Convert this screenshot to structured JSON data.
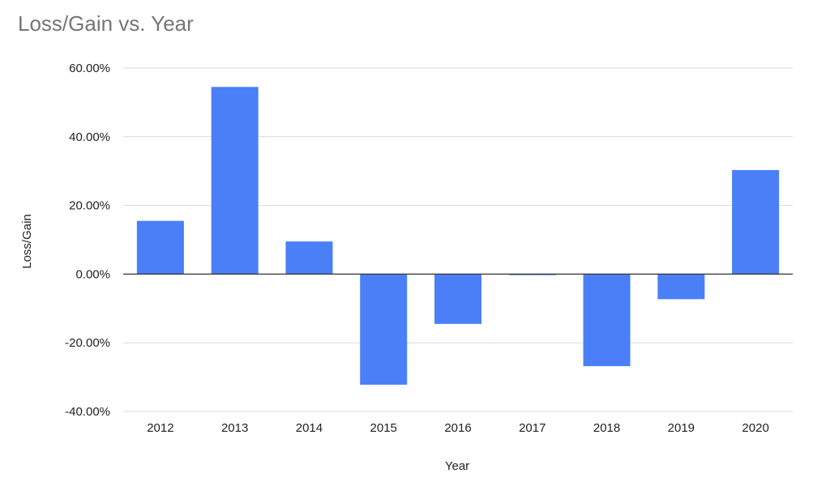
{
  "chart_data": {
    "type": "bar",
    "title": "Loss/Gain vs. Year",
    "xlabel": "Year",
    "ylabel": "Loss/Gain",
    "categories": [
      "2012",
      "2013",
      "2014",
      "2015",
      "2016",
      "2017",
      "2018",
      "2019",
      "2020"
    ],
    "values": [
      15.5,
      54.5,
      9.5,
      -32.2,
      -14.5,
      -0.3,
      -26.8,
      -7.3,
      30.3
    ],
    "value_unit": "%",
    "ylim": [
      -40,
      60
    ],
    "yticks": [
      -40,
      -20,
      0,
      20,
      40,
      60
    ],
    "ytick_labels": [
      "-40.00%",
      "-20.00%",
      "0.00%",
      "20.00%",
      "40.00%",
      "60.00%"
    ],
    "grid": true,
    "legend": "none",
    "colors": {
      "bar": "#4a7ff7",
      "grid": "#d9d9d9",
      "zero_line": "#333333"
    }
  }
}
